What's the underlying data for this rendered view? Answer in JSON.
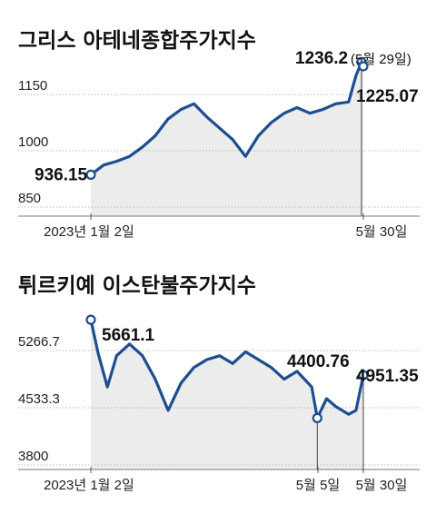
{
  "chart_data": [
    {
      "type": "area",
      "title": "그리스 아테네종합주가지수",
      "ylim": [
        850,
        1236.2
      ],
      "yticks": [
        "1150",
        "1000",
        "850"
      ],
      "ytick_values": [
        1150,
        1000,
        850
      ],
      "xtick_labels": [
        "2023년 1월 2일",
        "5월 30일"
      ],
      "grid": true,
      "colors": {
        "line": "#1d4e8f",
        "area": "#ececec",
        "grid": "#bdbdbd"
      },
      "x": [
        "2023-01-02",
        "2023-01-09",
        "2023-01-16",
        "2023-01-23",
        "2023-01-30",
        "2023-02-06",
        "2023-02-13",
        "2023-02-20",
        "2023-02-27",
        "2023-03-06",
        "2023-03-13",
        "2023-03-20",
        "2023-03-27",
        "2023-04-03",
        "2023-04-10",
        "2023-04-17",
        "2023-04-24",
        "2023-05-01",
        "2023-05-08",
        "2023-05-15",
        "2023-05-22",
        "2023-05-26",
        "2023-05-29",
        "2023-05-30"
      ],
      "values": [
        936.15,
        962,
        972,
        985,
        1010,
        1040,
        1085,
        1110,
        1125,
        1090,
        1060,
        1030,
        985,
        1040,
        1075,
        1100,
        1115,
        1100,
        1110,
        1125,
        1130,
        1200,
        1236.2,
        1225.07
      ],
      "annotations": [
        {
          "label": "936.15",
          "x": "2023-01-02",
          "y": 936.15
        },
        {
          "label": "1236.2",
          "note": "(5월 29일)",
          "x": "2023-05-29",
          "y": 1236.2
        },
        {
          "label": "1225.07",
          "x": "2023-05-30",
          "y": 1225.07
        }
      ]
    },
    {
      "type": "area",
      "title": "튀르키예 이스탄불주가지수",
      "ylim": [
        3800,
        5661.1
      ],
      "yticks": [
        "5266.7",
        "4533.3",
        "3800"
      ],
      "ytick_values": [
        5266.7,
        4533.3,
        3800
      ],
      "xtick_labels": [
        "2023년 1월 2일",
        "5월 5일",
        "5월 30일"
      ],
      "grid": true,
      "colors": {
        "line": "#1d4e8f",
        "area": "#ececec",
        "grid": "#bdbdbd"
      },
      "x": [
        "2023-01-02",
        "2023-01-06",
        "2023-01-11",
        "2023-01-16",
        "2023-01-23",
        "2023-01-30",
        "2023-02-06",
        "2023-02-13",
        "2023-02-20",
        "2023-02-27",
        "2023-03-06",
        "2023-03-13",
        "2023-03-20",
        "2023-03-27",
        "2023-04-03",
        "2023-04-10",
        "2023-04-17",
        "2023-04-24",
        "2023-05-02",
        "2023-05-05",
        "2023-05-10",
        "2023-05-15",
        "2023-05-22",
        "2023-05-26",
        "2023-05-30"
      ],
      "values": [
        5661.1,
        5230,
        4800,
        5200,
        5350,
        5200,
        4900,
        4500,
        4850,
        5050,
        5150,
        5200,
        5100,
        5250,
        5150,
        5050,
        4900,
        5000,
        4800,
        4400.76,
        4650,
        4550,
        4450,
        4500,
        4951.35
      ],
      "annotations": [
        {
          "label": "5661.1",
          "x": "2023-01-02",
          "y": 5661.1
        },
        {
          "label": "4400.76",
          "x": "2023-05-05",
          "y": 4400.76
        },
        {
          "label": "4951.35",
          "x": "2023-05-30",
          "y": 4951.35
        }
      ]
    }
  ]
}
